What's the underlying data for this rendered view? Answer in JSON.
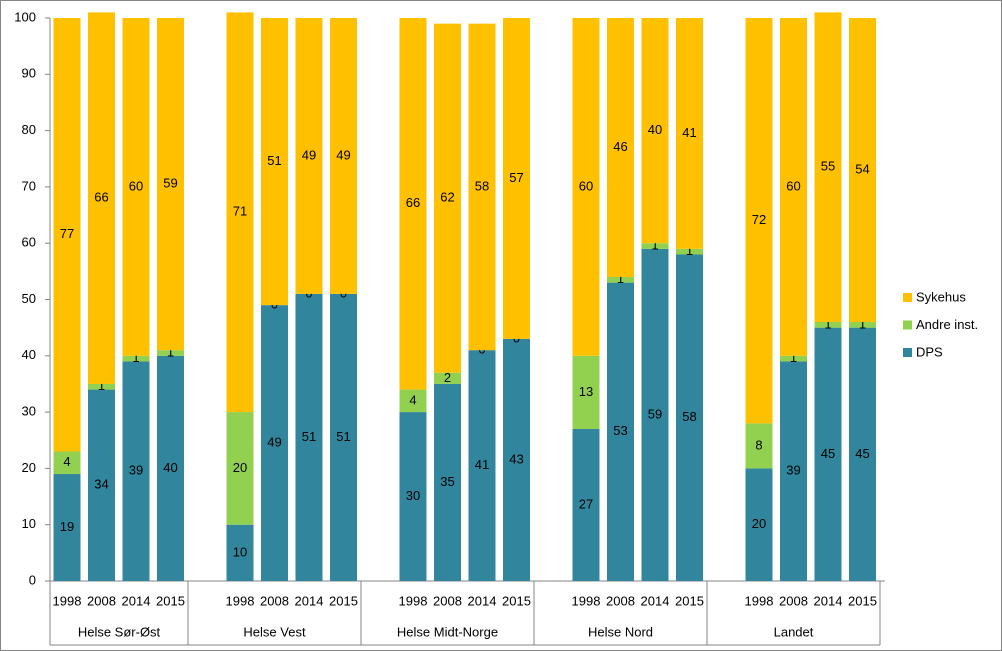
{
  "chart_data": {
    "type": "stacked-bar",
    "groups": [
      {
        "name": "Helse Sør-Øst",
        "categories": [
          "1998",
          "2008",
          "2014",
          "2015"
        ]
      },
      {
        "name": "Helse Vest",
        "categories": [
          "1998",
          "2008",
          "2014",
          "2015"
        ]
      },
      {
        "name": "Helse Midt-Norge",
        "categories": [
          "1998",
          "2008",
          "2014",
          "2015"
        ]
      },
      {
        "name": "Helse Nord",
        "categories": [
          "1998",
          "2008",
          "2014",
          "2015"
        ]
      },
      {
        "name": "Landet",
        "categories": [
          "1998",
          "2008",
          "2014",
          "2015"
        ]
      }
    ],
    "series": [
      {
        "name": "DPS",
        "color": "#31859c",
        "values": [
          19,
          34,
          39,
          40,
          10,
          49,
          51,
          51,
          30,
          35,
          41,
          43,
          27,
          53,
          59,
          58,
          20,
          39,
          45,
          45
        ]
      },
      {
        "name": "Andre inst.",
        "color": "#92d050",
        "values": [
          4,
          1,
          1,
          1,
          20,
          0,
          0,
          0,
          4,
          2,
          0,
          0,
          13,
          1,
          1,
          1,
          8,
          1,
          1,
          1
        ]
      },
      {
        "name": "Sykehus",
        "color": "#ffc000",
        "values": [
          77,
          66,
          60,
          59,
          71,
          51,
          49,
          49,
          66,
          62,
          58,
          57,
          60,
          46,
          40,
          41,
          72,
          60,
          55,
          54
        ]
      }
    ],
    "ylim": [
      0,
      100
    ],
    "yticks": [
      0,
      10,
      20,
      30,
      40,
      50,
      60,
      70,
      80,
      90,
      100
    ],
    "legend": "right"
  }
}
